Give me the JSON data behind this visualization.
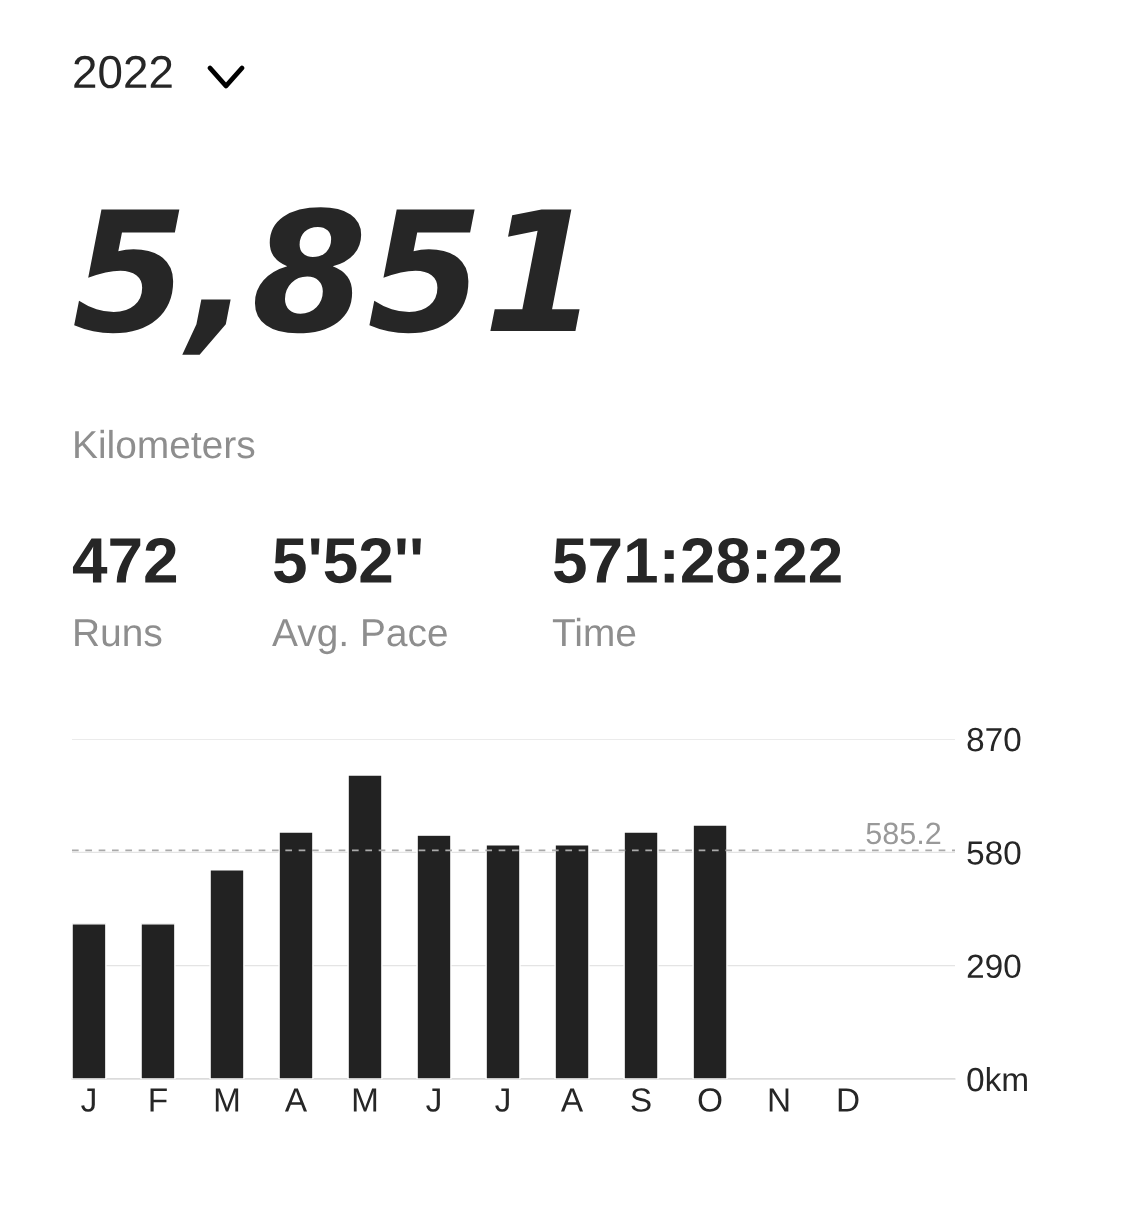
{
  "chart_data": {
    "type": "bar",
    "title": "2022",
    "annotations": [
      "5,851",
      "Kilometers",
      "472",
      "Runs",
      "5'52''",
      "Avg. Pace",
      "571:28:22",
      "Time"
    ],
    "categories": [
      "J",
      "F",
      "M",
      "A",
      "M",
      "J",
      "J",
      "A",
      "S",
      "O",
      "N",
      "D"
    ],
    "values": [
      397,
      397,
      535,
      632,
      778,
      624,
      599,
      599,
      632,
      650,
      null,
      null
    ],
    "color": "#222222",
    "ylim": [
      0,
      870
    ],
    "yticks": [
      {
        "value": 0,
        "label": "0km"
      },
      290,
      580,
      870
    ],
    "grid": "y",
    "ref_lines": [
      {
        "axis": "y",
        "value": 585.2,
        "label": "585.2",
        "color": "#aaaaaa",
        "line_style": "dashed"
      }
    ]
  }
}
